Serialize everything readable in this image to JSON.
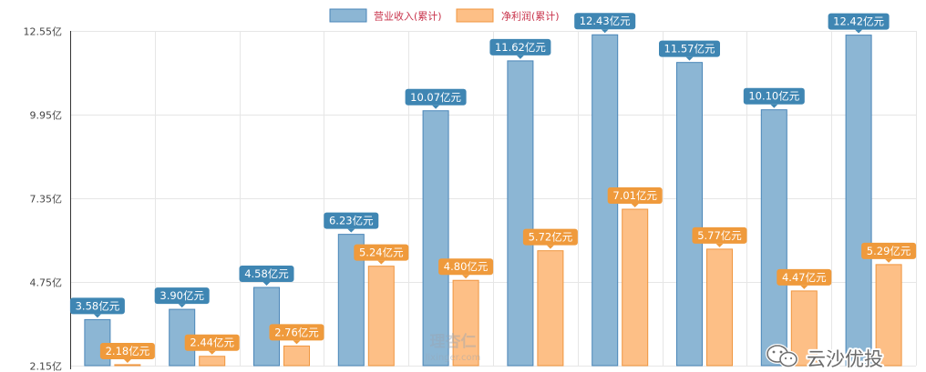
{
  "chart_data": {
    "type": "bar",
    "title": "",
    "xlabel": "",
    "ylabel": "",
    "ylim": [
      2.15,
      12.55
    ],
    "yticks": [
      "2.15亿",
      "4.75亿",
      "7.35亿",
      "9.95亿",
      "12.55亿"
    ],
    "ytick_values": [
      2.15,
      4.75,
      7.35,
      9.95,
      12.55
    ],
    "grid": true,
    "legend_position": "top-center",
    "categories": [
      "",
      "",
      "",
      "",
      "",
      "",
      "",
      "",
      "",
      ""
    ],
    "series": [
      {
        "name": "营业收入(累计)",
        "color": "#8cb6d4",
        "border": "#4a86b8",
        "label_bg": "#3f86b3",
        "values": [
          3.58,
          3.9,
          4.58,
          6.23,
          10.07,
          11.62,
          12.43,
          11.57,
          10.1,
          12.42
        ],
        "labels": [
          "3.58亿元",
          "3.90亿元",
          "4.58亿元",
          "6.23亿元",
          "10.07亿元",
          "11.62亿元",
          "12.43亿元",
          "11.57亿元",
          "10.10亿元",
          "12.42亿元"
        ]
      },
      {
        "name": "净利润(累计)",
        "color": "#fdbf86",
        "border": "#f0963f",
        "label_bg": "#ef9a3c",
        "values": [
          2.18,
          2.44,
          2.76,
          5.24,
          4.8,
          5.72,
          7.01,
          5.77,
          4.47,
          5.29
        ],
        "labels": [
          "2.18亿元",
          "2.44亿元",
          "2.76亿元",
          "5.24亿元",
          "4.80亿元",
          "5.72亿元",
          "7.01亿元",
          "5.77亿元",
          "4.47亿元",
          "5.29亿元"
        ]
      }
    ]
  },
  "watermarks": {
    "site_logo": "理杏仁",
    "site_url": "lixinger.com",
    "wechat": "云沙优投"
  }
}
